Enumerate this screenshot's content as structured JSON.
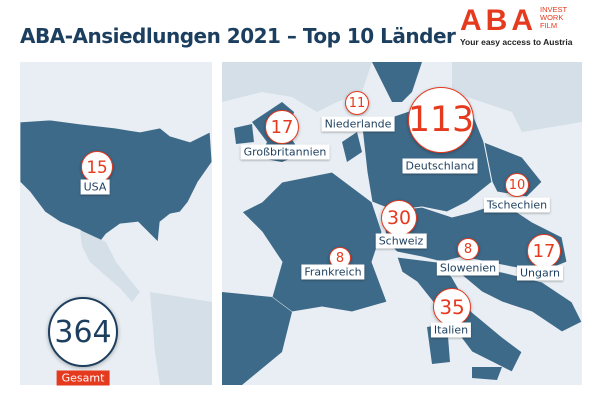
{
  "title": "ABA-Ansiedlungen 2021 – Top 10 Länder",
  "logo": {
    "name": "ABA",
    "side": [
      "INVEST",
      "WORK",
      "FILM"
    ],
    "tagline": "Your easy access to Austria"
  },
  "colors": {
    "accent": "#e63a1f",
    "navy": "#1d3f5f",
    "country": "#3e6a89",
    "background": "#e8eef3"
  },
  "countries": [
    {
      "name": "USA",
      "value": 15
    },
    {
      "name": "Großbritannien",
      "value": 17
    },
    {
      "name": "Niederlande",
      "value": 11
    },
    {
      "name": "Deutschland",
      "value": 113
    },
    {
      "name": "Tschechien",
      "value": 10
    },
    {
      "name": "Schweiz",
      "value": 30
    },
    {
      "name": "Frankreich",
      "value": 8
    },
    {
      "name": "Slowenien",
      "value": 8
    },
    {
      "name": "Ungarn",
      "value": 17
    },
    {
      "name": "Italien",
      "value": 35
    }
  ],
  "total": {
    "value": 364,
    "label": "Gesamt"
  }
}
